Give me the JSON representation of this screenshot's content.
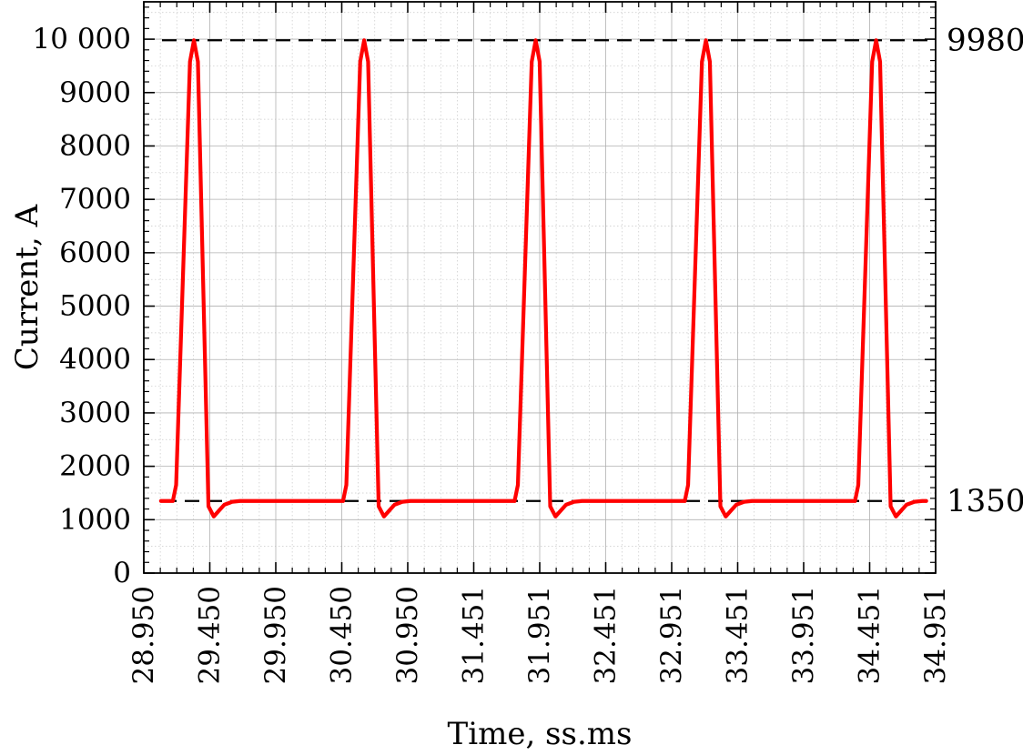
{
  "chart_data": {
    "type": "line",
    "title": "",
    "xlabel": "Time, ss.ms",
    "ylabel": "Current, A",
    "xlim": [
      28.95,
      34.951
    ],
    "ylim": [
      0,
      10700
    ],
    "x_ticks": [
      "28.950",
      "29.450",
      "29.950",
      "30.450",
      "30.950",
      "31.451",
      "31.951",
      "32.451",
      "32.951",
      "33.451",
      "33.951",
      "34.451",
      "34.951"
    ],
    "y_ticks": [
      "0",
      "1000",
      "2000",
      "3000",
      "4000",
      "5000",
      "6000",
      "7000",
      "8000",
      "9000",
      "10 000"
    ],
    "grid": true,
    "legend": "none",
    "series": [
      {
        "color": "#ff0000",
        "pulse_peaks_x": [
          29.33,
          30.62,
          31.92,
          33.21,
          34.5
        ],
        "pulse_peak_y": 9980,
        "baseline_y": 1350,
        "undershoot_y": 1060,
        "pulse_rise_duration": 0.16,
        "pulse_fall_duration": 0.13,
        "x_start": 29.08,
        "x_end": 34.88
      }
    ],
    "reference_lines": [
      {
        "y": 9980,
        "label": "9980",
        "style": "dashed",
        "color": "#000000"
      },
      {
        "y": 1350,
        "label": "1350",
        "style": "dashed",
        "color": "#000000"
      }
    ]
  }
}
